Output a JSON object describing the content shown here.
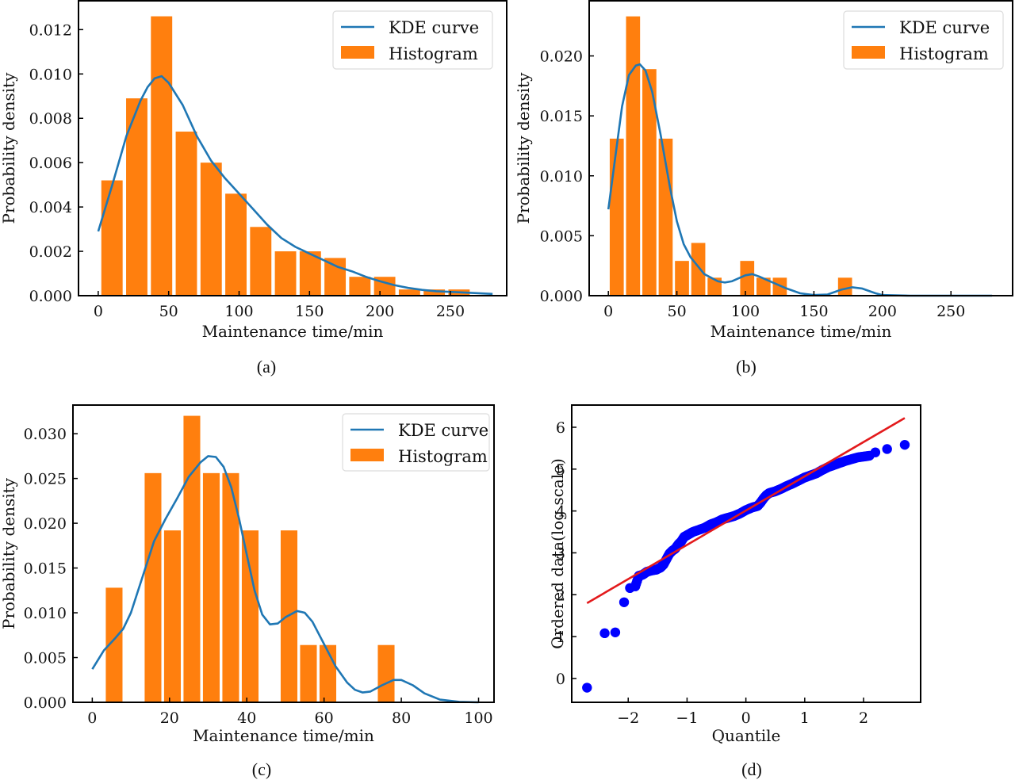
{
  "figure": {
    "captions": [
      "(a)",
      "(b)",
      "(c)",
      "(d)"
    ]
  },
  "colors": {
    "kde": "#1f77b4",
    "histogram": "#ff7f0e",
    "qq_points": "#0000ff",
    "qq_line": "#e31a1c"
  },
  "chart_data": [
    {
      "id": "a",
      "type": "bar",
      "caption": "(a)",
      "title": "",
      "xlabel": "Maintenance time/min",
      "ylabel": "Probability density",
      "xlim": [
        -14,
        290
      ],
      "ylim": [
        0,
        0.0133
      ],
      "xticks": [
        0,
        50,
        100,
        150,
        200,
        250
      ],
      "yticks": [
        0.0,
        0.002,
        0.004,
        0.006,
        0.008,
        0.01,
        0.012
      ],
      "ytick_labels": [
        "0.000",
        "0.002",
        "0.004",
        "0.006",
        "0.008",
        "0.010",
        "0.012"
      ],
      "grid": false,
      "legend": {
        "position": "top-right",
        "entries": [
          "KDE curve",
          "Histogram"
        ]
      },
      "histogram": {
        "bin_start": 2.2,
        "bin_width": 17.6,
        "values": [
          0.0052,
          0.0089,
          0.0126,
          0.0074,
          0.006,
          0.0046,
          0.0031,
          0.002,
          0.002,
          0.0017,
          0.00085,
          0.00085,
          0.00028,
          0.00028,
          0.00028
        ]
      },
      "kde": {
        "x": [
          0,
          10,
          20,
          30,
          35,
          40,
          45,
          50,
          60,
          70,
          80,
          90,
          100,
          110,
          120,
          130,
          140,
          150,
          160,
          170,
          180,
          190,
          200,
          210,
          220,
          230,
          240,
          250,
          260,
          270,
          280
        ],
        "y": [
          0.0029,
          0.005,
          0.0072,
          0.0088,
          0.0094,
          0.0098,
          0.0099,
          0.0096,
          0.0086,
          0.0072,
          0.0061,
          0.0053,
          0.0046,
          0.0039,
          0.0032,
          0.0026,
          0.0022,
          0.0019,
          0.0016,
          0.0013,
          0.0011,
          0.00085,
          0.00065,
          0.00048,
          0.00035,
          0.00026,
          0.0002,
          0.00017,
          0.00014,
          0.00011,
          8e-05
        ]
      }
    },
    {
      "id": "b",
      "type": "bar",
      "caption": "(b)",
      "title": "",
      "xlabel": "Maintenance time/min",
      "ylabel": "Probability density",
      "xlim": [
        -14,
        295
      ],
      "ylim": [
        0,
        0.0246
      ],
      "xticks": [
        0,
        50,
        100,
        150,
        200,
        250
      ],
      "yticks": [
        0.0,
        0.005,
        0.01,
        0.015,
        0.02
      ],
      "ytick_labels": [
        "0.000",
        "0.005",
        "0.010",
        "0.015",
        "0.020"
      ],
      "grid": false,
      "legend": {
        "position": "top-right",
        "entries": [
          "KDE curve",
          "Histogram"
        ]
      },
      "histogram": {
        "bin_start": 1.0,
        "bin_width": 11.9,
        "values": [
          0.0131,
          0.0233,
          0.0189,
          0.0131,
          0.0029,
          0.0044,
          0.0015,
          0,
          0.0029,
          0.0015,
          0.0015,
          0,
          0,
          0,
          0.0015
        ]
      },
      "kde": {
        "x": [
          0,
          5,
          10,
          15,
          20,
          23,
          27,
          32,
          38,
          45,
          50,
          55,
          60,
          70,
          80,
          85,
          90,
          100,
          105,
          110,
          120,
          130,
          140,
          150,
          160,
          170,
          178,
          185,
          195,
          200,
          220,
          250,
          280
        ],
        "y": [
          0.0072,
          0.0115,
          0.0158,
          0.0184,
          0.0192,
          0.0193,
          0.0188,
          0.017,
          0.0135,
          0.009,
          0.0062,
          0.0043,
          0.0032,
          0.0018,
          0.0012,
          0.0011,
          0.0012,
          0.0017,
          0.0018,
          0.0016,
          0.0011,
          0.0006,
          0.0002,
          5e-05,
          0.0001,
          0.0005,
          0.0007,
          0.0006,
          0.0002,
          5e-05,
          0,
          0,
          0
        ]
      }
    },
    {
      "id": "c",
      "type": "bar",
      "caption": "(c)",
      "title": "",
      "xlabel": "Maintenance time/min",
      "ylabel": "Probability density",
      "xlim": [
        -5,
        104
      ],
      "ylim": [
        0,
        0.0332
      ],
      "xticks": [
        0,
        20,
        40,
        60,
        80,
        100
      ],
      "yticks": [
        0.0,
        0.005,
        0.01,
        0.015,
        0.02,
        0.025,
        0.03
      ],
      "ytick_labels": [
        "0.000",
        "0.005",
        "0.010",
        "0.015",
        "0.020",
        "0.025",
        "0.030"
      ],
      "grid": false,
      "legend": {
        "position": "top-right",
        "entries": [
          "KDE curve",
          "Histogram"
        ]
      },
      "histogram": {
        "bin_start": 3.5,
        "bin_width": 5.03,
        "values": [
          0.0128,
          0,
          0.0256,
          0.0192,
          0.032,
          0.0256,
          0.0256,
          0.0192,
          0,
          0.0192,
          0.0064,
          0.0064,
          0,
          0,
          0.0064
        ]
      },
      "kde": {
        "x": [
          0,
          3,
          6,
          8,
          10,
          13,
          16,
          19,
          22,
          25,
          28,
          30,
          32,
          34,
          36,
          38,
          40,
          42,
          44,
          46,
          48,
          50,
          53,
          55,
          57,
          60,
          63,
          66,
          68,
          70,
          72,
          75,
          78,
          80,
          83,
          86,
          90,
          95,
          100
        ],
        "y": [
          0.0037,
          0.0058,
          0.0072,
          0.0082,
          0.01,
          0.014,
          0.018,
          0.0205,
          0.0228,
          0.0252,
          0.0268,
          0.0275,
          0.0274,
          0.0263,
          0.024,
          0.0205,
          0.0165,
          0.0125,
          0.0098,
          0.0087,
          0.0088,
          0.0095,
          0.0102,
          0.01,
          0.009,
          0.0065,
          0.004,
          0.0022,
          0.0014,
          0.0011,
          0.0012,
          0.0019,
          0.0025,
          0.0025,
          0.0019,
          0.001,
          0.0003,
          5e-05,
          0
        ]
      }
    },
    {
      "id": "d",
      "type": "scatter",
      "caption": "(d)",
      "title": "",
      "xlabel": "Quantile",
      "ylabel": "Ordered data(log scale)",
      "xlim": [
        -2.96,
        2.97
      ],
      "ylim": [
        -0.57,
        6.53
      ],
      "xticks": [
        -2,
        -1,
        0,
        1,
        2
      ],
      "xtick_labels": [
        "−2",
        "−1",
        "0",
        "1",
        "2"
      ],
      "yticks": [
        0,
        1,
        2,
        3,
        4,
        5,
        6
      ],
      "ytick_labels": [
        "0",
        "1",
        "2",
        "3",
        "4",
        "5",
        "6"
      ],
      "grid": false,
      "points": {
        "x": [
          -2.7,
          -2.4,
          -2.22,
          -2.07,
          -1.97,
          -1.88,
          -1.82,
          -1.75,
          -1.68,
          -1.6,
          -1.52,
          -1.45,
          -1.4,
          -1.35,
          -1.3,
          -1.25,
          -1.2,
          -1.15,
          -1.1,
          -1.05,
          -1.0,
          -0.95,
          -0.9,
          -0.8,
          -0.7,
          -0.6,
          -0.5,
          -0.4,
          -0.3,
          -0.2,
          -0.1,
          0.0,
          0.1,
          0.2,
          0.25,
          0.3,
          0.35,
          0.4,
          0.5,
          0.6,
          0.7,
          0.8,
          0.9,
          1.0,
          1.1,
          1.2,
          1.3,
          1.4,
          1.5,
          1.6,
          1.7,
          1.8,
          1.9,
          2.0,
          2.1,
          2.2,
          2.4,
          2.7
        ],
        "y": [
          -0.22,
          1.08,
          1.1,
          1.82,
          2.16,
          2.2,
          2.45,
          2.48,
          2.55,
          2.58,
          2.6,
          2.65,
          2.72,
          2.85,
          2.98,
          3.05,
          3.1,
          3.2,
          3.27,
          3.38,
          3.42,
          3.46,
          3.5,
          3.55,
          3.6,
          3.68,
          3.73,
          3.8,
          3.84,
          3.88,
          3.94,
          4.02,
          4.08,
          4.12,
          4.2,
          4.3,
          4.38,
          4.43,
          4.47,
          4.53,
          4.6,
          4.66,
          4.73,
          4.8,
          4.85,
          4.9,
          4.98,
          5.05,
          5.1,
          5.15,
          5.2,
          5.24,
          5.28,
          5.3,
          5.32,
          5.4,
          5.48,
          5.58
        ]
      },
      "fit_line": {
        "x": [
          -2.7,
          2.7
        ],
        "y": [
          1.8,
          6.22
        ]
      }
    }
  ]
}
